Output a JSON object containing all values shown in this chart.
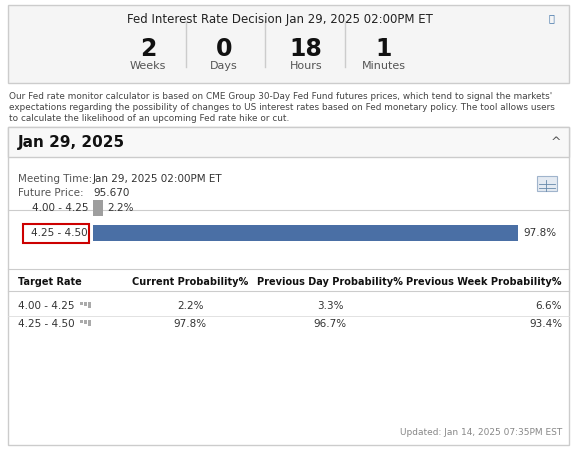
{
  "title": "Fed Interest Rate Decision Jan 29, 2025 02:00PM ET",
  "countdown_values": [
    "2",
    "0",
    "18",
    "1"
  ],
  "countdown_labels": [
    "Weeks",
    "Days",
    "Hours",
    "Minutes"
  ],
  "description_lines": [
    "Our Fed rate monitor calculator is based on CME Group 30-Day Fed Fund futures prices, which tend to signal the markets'",
    "expectations regarding the possibility of changes to US interest rates based on Fed monetary policy. The tool allows users",
    "to calculate the likelihood of an upcoming Fed rate hike or cut."
  ],
  "section_title": "Jan 29, 2025",
  "meeting_time_label": "Meeting Time:",
  "meeting_time_value": "Jan 29, 2025 02:00PM ET",
  "future_price_label": "Future Price:",
  "future_price_value": "95.670",
  "bars": [
    {
      "label": "4.00 - 4.25",
      "value": 2.2,
      "color": "#9e9e9e",
      "highlighted": false
    },
    {
      "label": "4.25 - 4.50",
      "value": 97.8,
      "color": "#4a6fa5",
      "highlighted": true
    }
  ],
  "table_headers": [
    "Target Rate",
    "Current Probability%",
    "Previous Day Probability%",
    "Previous Week Probability%"
  ],
  "table_rows": [
    [
      "4.00 - 4.25",
      "2.2%",
      "3.3%",
      "6.6%"
    ],
    [
      "4.25 - 4.50",
      "97.8%",
      "96.7%",
      "93.4%"
    ]
  ],
  "updated_text": "Updated: Jan 14, 2025 07:35PM EST",
  "bg_color": "#ffffff",
  "header_bg": "#f5f5f5",
  "section_header_bg": "#f8f8f8",
  "border_color": "#cccccc",
  "highlight_border": "#cc0000",
  "text_dark": "#222222",
  "text_mid": "#555555",
  "text_body": "#333333",
  "text_light": "#888888"
}
